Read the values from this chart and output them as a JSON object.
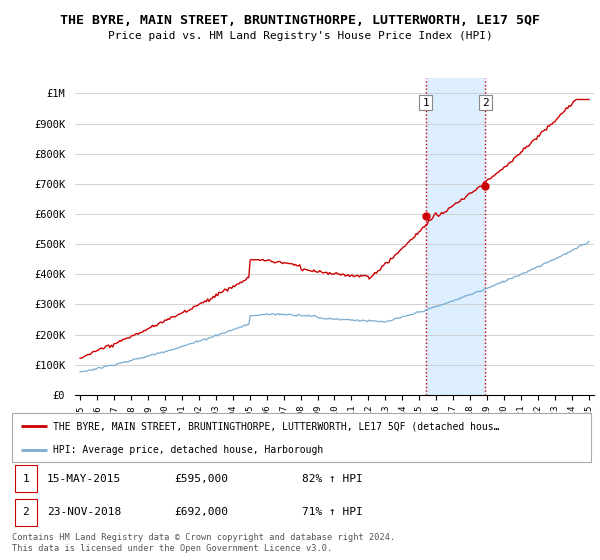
{
  "title": "THE BYRE, MAIN STREET, BRUNTINGTHORPE, LUTTERWORTH, LE17 5QF",
  "subtitle": "Price paid vs. HM Land Registry's House Price Index (HPI)",
  "ylim": [
    0,
    1050000
  ],
  "yticks": [
    0,
    100000,
    200000,
    300000,
    400000,
    500000,
    600000,
    700000,
    800000,
    900000,
    1000000
  ],
  "ytick_labels": [
    "£0",
    "£100K",
    "£200K",
    "£300K",
    "£400K",
    "£500K",
    "£600K",
    "£700K",
    "£800K",
    "£900K",
    "£1M"
  ],
  "red_color": "#cc0000",
  "blue_color": "#7aadcf",
  "shaded_color": "#ddeeff",
  "sale1_date": 2015.37,
  "sale1_price": 595000,
  "sale2_date": 2018.9,
  "sale2_price": 692000,
  "legend_red_text": "THE BYRE, MAIN STREET, BRUNTINGTHORPE, LUTTERWORTH, LE17 5QF (detached hous…",
  "legend_blue_text": "HPI: Average price, detached house, Harborough",
  "footer": "Contains HM Land Registry data © Crown copyright and database right 2024.\nThis data is licensed under the Open Government Licence v3.0.",
  "xstart": 1995,
  "xend": 2025
}
